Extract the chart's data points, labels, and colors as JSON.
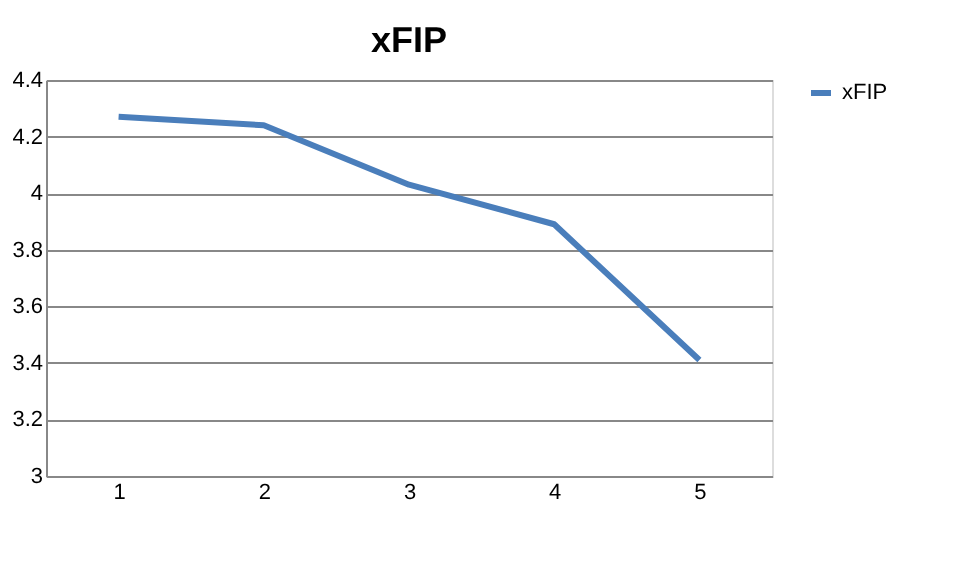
{
  "chart_data": {
    "type": "line",
    "title": "xFIP",
    "categories": [
      "1",
      "2",
      "3",
      "4",
      "5"
    ],
    "series": [
      {
        "name": "xFIP",
        "color": "#4a7ebb",
        "values": [
          4.27,
          4.24,
          4.03,
          3.89,
          3.41
        ]
      }
    ],
    "ylim": [
      3,
      4.4
    ],
    "yticks": [
      3,
      3.2,
      3.4,
      3.6,
      3.8,
      4,
      4.2,
      4.4
    ],
    "grid": "y",
    "legend": "right"
  }
}
